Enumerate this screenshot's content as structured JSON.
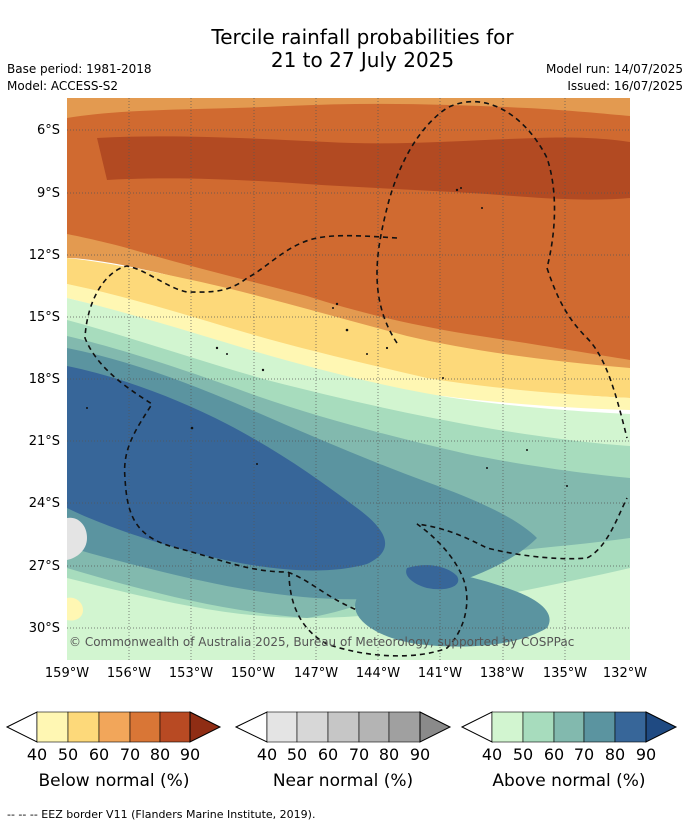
{
  "header": {
    "title_line1": "Tercile rainfall probabilities for",
    "title_line2": "21 to 27 July 2025",
    "base_period": "Base period: 1981-2018",
    "model": "Model: ACCESS-S2",
    "model_run": "Model run: 14/07/2025",
    "issued": "Issued: 16/07/2025"
  },
  "map": {
    "copyright": "© Commonwealth of Australia 2025, Bureau of Meteorology, supported by COSPPac",
    "lat_labels": [
      "6°S",
      "9°S",
      "12°S",
      "15°S",
      "18°S",
      "21°S",
      "24°S",
      "27°S",
      "30°S"
    ],
    "lon_labels": [
      "159°W",
      "156°W",
      "153°W",
      "150°W",
      "147°W",
      "144°W",
      "141°W",
      "138°W",
      "135°W",
      "132°W"
    ]
  },
  "legend": {
    "below": {
      "title": "Below normal (%)",
      "ticks": [
        "40",
        "50",
        "60",
        "70",
        "80",
        "90"
      ],
      "colors": [
        "#fff7b3",
        "#fdd97a",
        "#f2a65a",
        "#d97636",
        "#b84a23",
        "#8f2d14"
      ]
    },
    "near": {
      "title": "Near normal (%)",
      "ticks": [
        "40",
        "50",
        "60",
        "70",
        "80",
        "90"
      ],
      "colors": [
        "#ffffff",
        "#e4e4e4",
        "#d3d3d3",
        "#bfbfbf",
        "#a8a8a8",
        "#8a8a8a"
      ]
    },
    "above": {
      "title": "Above normal (%)",
      "ticks": [
        "40",
        "50",
        "60",
        "70",
        "80",
        "90"
      ],
      "colors": [
        "#d2f5d0",
        "#a7dcbd",
        "#82b9ae",
        "#5b94a0",
        "#376699",
        "#1f4a82"
      ]
    }
  },
  "footer": {
    "eez_note": "--  --  -- EEZ border V11 (Flanders Marine Institute, 2019)."
  }
}
